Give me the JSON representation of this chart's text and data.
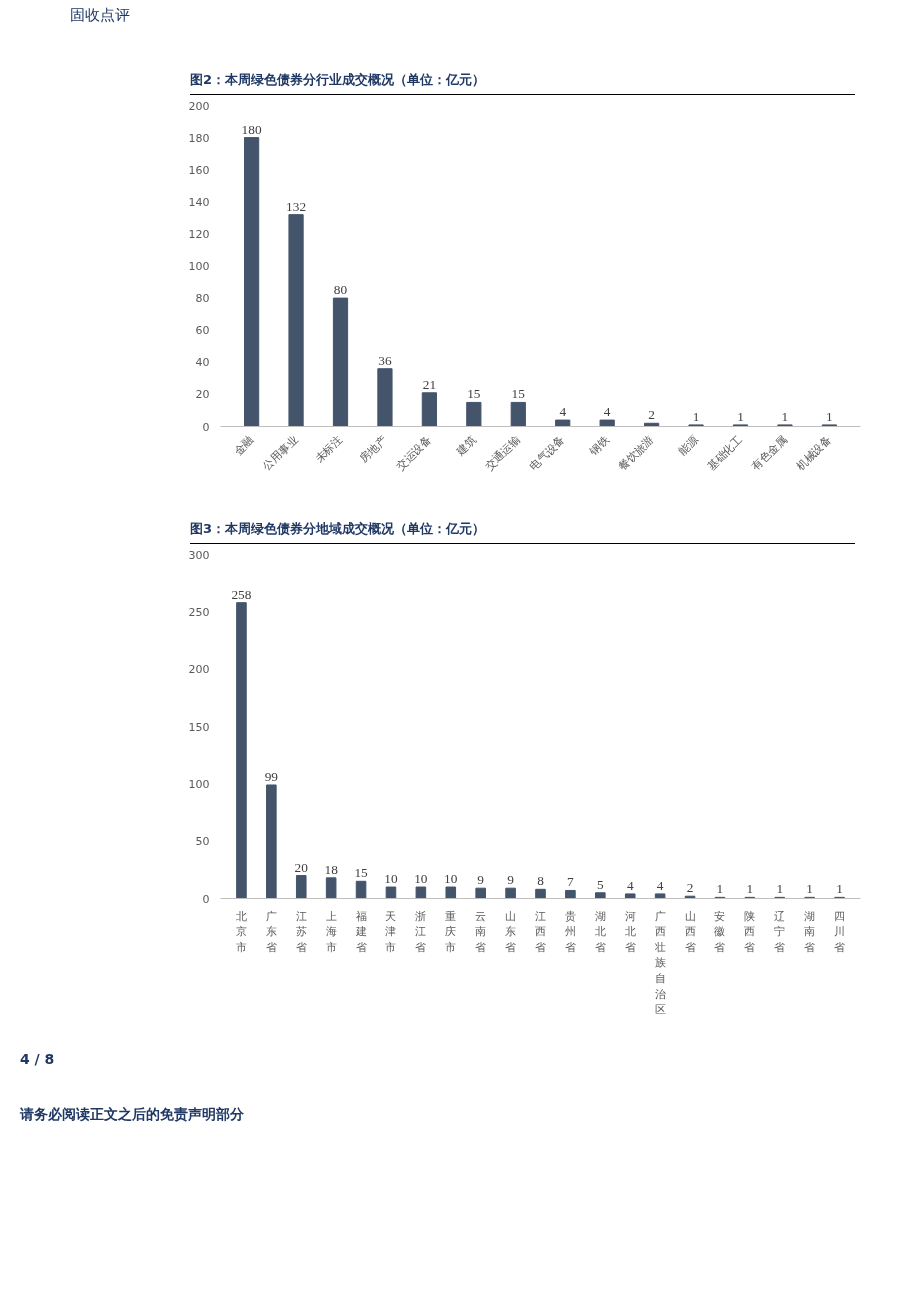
{
  "chart_data": [
    {
      "type": "bar",
      "title": "图2：本周绿色债券分行业成交概况（单位：亿元）",
      "annotations": [
        "固收点评"
      ],
      "categories": [
        "金融",
        "公用事业",
        "未标注",
        "房地产",
        "交运设备",
        "建筑",
        "交通运输",
        "电气设备",
        "钢铁",
        "餐饮旅游",
        "能源",
        "基础化工",
        "有色金属",
        "机械设备"
      ],
      "values": [
        180,
        132,
        80,
        36,
        21,
        15,
        15,
        4,
        4,
        2,
        1,
        1,
        1,
        1
      ],
      "color": "#44546a",
      "ylim": [
        0,
        200
      ],
      "yticks": [
        0,
        20,
        40,
        60,
        80,
        100,
        120,
        140,
        160,
        180,
        200
      ],
      "grid": false,
      "data_labels": true
    },
    {
      "type": "bar",
      "title": "图3：本周绿色债券分地域成交概况（单位：亿元）",
      "annotations": [
        "4 / 8",
        "请务必阅读正文之后的免责声明部分"
      ],
      "categories": [
        "北京市",
        "广东省",
        "江苏省",
        "上海市",
        "福建省",
        "天津市",
        "浙江省",
        "重庆市",
        "云南省",
        "山东省",
        "江西省",
        "贵州省",
        "湖北省",
        "河北省",
        "广西壮族自治区",
        "山西省",
        "安徽省",
        "陕西省",
        "辽宁省",
        "湖南省",
        "四川省"
      ],
      "values": [
        258,
        99,
        20,
        18,
        15,
        10,
        10,
        10,
        9,
        9,
        8,
        7,
        5,
        4,
        4,
        2,
        1,
        1,
        1,
        1,
        1
      ],
      "color": "#44546a",
      "ylim": [
        0,
        300
      ],
      "yticks": [
        0,
        50,
        100,
        150,
        200,
        250,
        300
      ],
      "grid": false,
      "data_labels": true
    }
  ]
}
